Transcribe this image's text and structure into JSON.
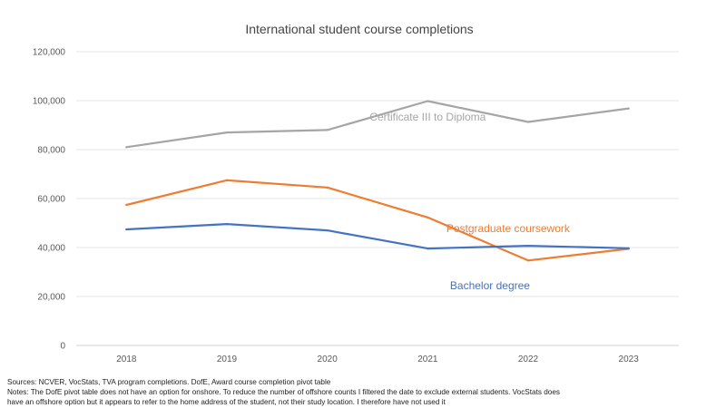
{
  "chart_data": {
    "type": "line",
    "title": "International student course completions",
    "xlabel": "",
    "ylabel": "",
    "categories": [
      "2018",
      "2019",
      "2020",
      "2021",
      "2022",
      "2023"
    ],
    "ylim": [
      0,
      120000
    ],
    "yticks": [
      0,
      20000,
      40000,
      60000,
      80000,
      100000,
      120000
    ],
    "ytick_labels": [
      "0",
      "20,000",
      "40,000",
      "60,000",
      "80,000",
      "100,000",
      "120,000"
    ],
    "grid": true,
    "legend": "inline labels",
    "series": [
      {
        "name": "Certificate III to Diploma",
        "color": "#a5a5a5",
        "values": [
          81000,
          87000,
          88000,
          99800,
          91300,
          96800
        ]
      },
      {
        "name": "Postgraduate coursework",
        "color": "#ed7d31",
        "values": [
          57400,
          67500,
          64500,
          52300,
          34700,
          39500
        ]
      },
      {
        "name": "Bachelor degree",
        "color": "#4472c4",
        "values": [
          47400,
          49600,
          47000,
          39600,
          40700,
          39700
        ]
      }
    ]
  },
  "footnotes": {
    "sources": "Sources: NCVER, VocStats, TVA program completions. DofE, Award course completion pivot table",
    "notes_line1": "Notes: The DofE pivot table does not have an option for onshore. To reduce the number of offshore counts I filtered the date to exclude external students. VocStats does",
    "notes_line2": "have an offshore option but  it appears to refer to the home address of the student, not their study location. I therefore have not used it"
  }
}
